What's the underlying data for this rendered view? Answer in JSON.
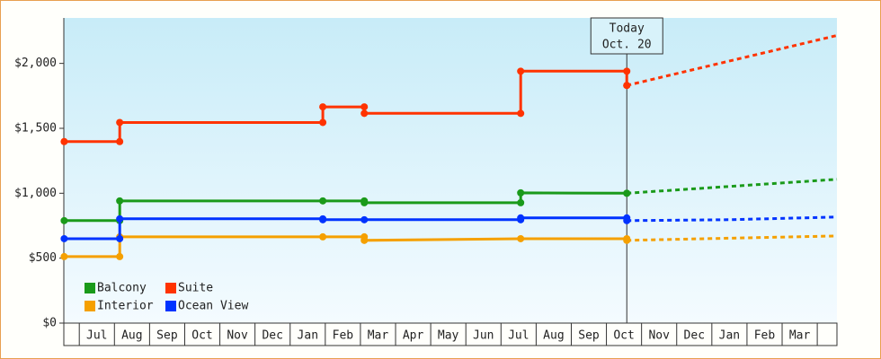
{
  "chart_data": {
    "type": "line",
    "categories": [
      "Jul",
      "Aug",
      "Sep",
      "Oct",
      "Nov",
      "Dec",
      "Jan",
      "Feb",
      "Mar",
      "Apr",
      "May",
      "Jun",
      "Jul",
      "Aug",
      "Sep",
      "Oct",
      "Nov",
      "Dec",
      "Jan",
      "Feb",
      "Mar"
    ],
    "xlim": [
      -0.44,
      21.56
    ],
    "ylim": [
      0,
      2350
    ],
    "yticks": [
      {
        "value": 0,
        "label": "$0"
      },
      {
        "value": 500,
        "label": "$500"
      },
      {
        "value": 1000,
        "label": "$1,000"
      },
      {
        "value": 1500,
        "label": "$1,500"
      },
      {
        "value": 2000,
        "label": "$2,000"
      }
    ],
    "annotation": {
      "x": 15.58,
      "lines": [
        "Today",
        "Oct. 20"
      ]
    },
    "legend": "lower left",
    "series": [
      {
        "name": "Balcony",
        "color": "#1a9a1a",
        "x": [
          -0.43,
          1.15,
          1.15,
          6.93,
          8.11,
          8.11,
          12.56,
          12.56,
          15.58
        ],
        "values": [
          789,
          789,
          941,
          941,
          941,
          927,
          927,
          1003,
          1000
        ],
        "forecast": {
          "x": [
            15.58,
            21.56
          ],
          "values": [
            1000,
            1107
          ]
        }
      },
      {
        "name": "Suite",
        "color": "#ff3300",
        "x": [
          -0.43,
          1.15,
          1.15,
          6.93,
          6.93,
          8.11,
          8.11,
          12.56,
          12.56,
          15.58,
          15.58
        ],
        "values": [
          1398,
          1398,
          1545,
          1545,
          1665,
          1665,
          1615,
          1615,
          1940,
          1940,
          1830
        ],
        "forecast": {
          "x": [
            15.58,
            21.56
          ],
          "values": [
            1830,
            2215
          ]
        }
      },
      {
        "name": "Interior",
        "color": "#f5a000",
        "x": [
          -0.43,
          1.15,
          1.15,
          6.93,
          8.11,
          8.11,
          12.56,
          15.58
        ],
        "values": [
          512,
          512,
          664,
          664,
          664,
          637,
          650,
          650
        ],
        "forecast": {
          "x": [
            15.58,
            21.56
          ],
          "values": [
            637,
            671
          ]
        }
      },
      {
        "name": "Ocean View",
        "color": "#0033ff",
        "x": [
          -0.43,
          1.15,
          1.15,
          6.93,
          6.93,
          8.11,
          12.56,
          12.56,
          15.58
        ],
        "values": [
          650,
          650,
          803,
          803,
          796,
          796,
          796,
          810,
          810
        ],
        "forecast": {
          "x": [
            15.58,
            18.5,
            21.56
          ],
          "values": [
            789,
            796,
            817
          ]
        }
      }
    ]
  }
}
